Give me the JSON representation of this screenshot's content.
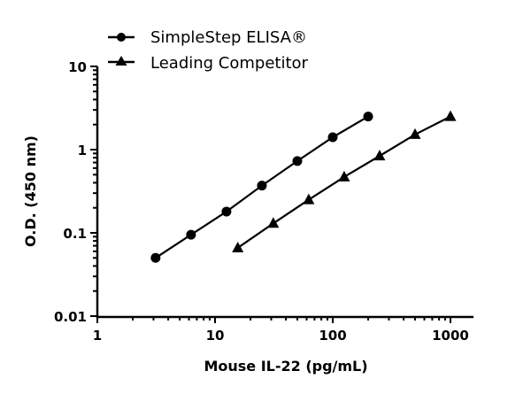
{
  "chart_data": {
    "type": "line",
    "title": "",
    "xlabel": "Mouse IL-22 (pg/mL)",
    "ylabel": "O.D. (450 nm)",
    "xscale": "log",
    "yscale": "log",
    "xlim": [
      1,
      1500
    ],
    "ylim": [
      0.01,
      10
    ],
    "xticks": [
      "1",
      "10",
      "100",
      "1000"
    ],
    "yticks": [
      "0.01",
      "0.1",
      "1",
      "10"
    ],
    "grid": false,
    "legend_placement": "top-left",
    "series": [
      {
        "name": "SimpleStep ELISA®",
        "marker": "circle",
        "color": "#000000",
        "x": [
          3.125,
          6.25,
          12.5,
          25,
          50,
          100,
          200
        ],
        "y": [
          0.05,
          0.095,
          0.18,
          0.37,
          0.73,
          1.41,
          2.5
        ]
      },
      {
        "name": "Leading Competitor",
        "marker": "triangle",
        "color": "#000000",
        "x": [
          15.6,
          31.25,
          62.5,
          125,
          250,
          500,
          1000
        ],
        "y": [
          0.066,
          0.13,
          0.25,
          0.47,
          0.84,
          1.52,
          2.5
        ]
      }
    ]
  }
}
